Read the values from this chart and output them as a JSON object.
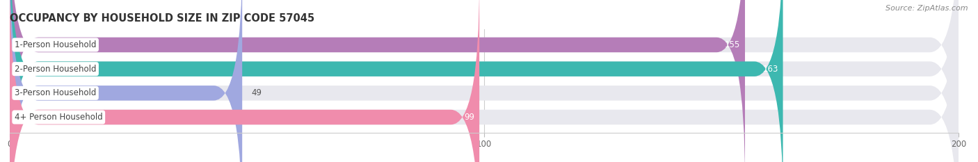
{
  "title": "OCCUPANCY BY HOUSEHOLD SIZE IN ZIP CODE 57045",
  "source": "Source: ZipAtlas.com",
  "categories": [
    "1-Person Household",
    "2-Person Household",
    "3-Person Household",
    "4+ Person Household"
  ],
  "values": [
    155,
    163,
    49,
    99
  ],
  "bar_colors": [
    "#b57db8",
    "#3db8b0",
    "#a0a8e0",
    "#f08cac"
  ],
  "bar_bg_color": "#e8e8ee",
  "xlim": [
    0,
    200
  ],
  "xticks": [
    0,
    100,
    200
  ],
  "title_fontsize": 10.5,
  "source_fontsize": 8,
  "label_fontsize": 8.5,
  "value_fontsize": 8.5,
  "tick_fontsize": 8.5,
  "background_color": "#ffffff",
  "bar_height": 0.62
}
